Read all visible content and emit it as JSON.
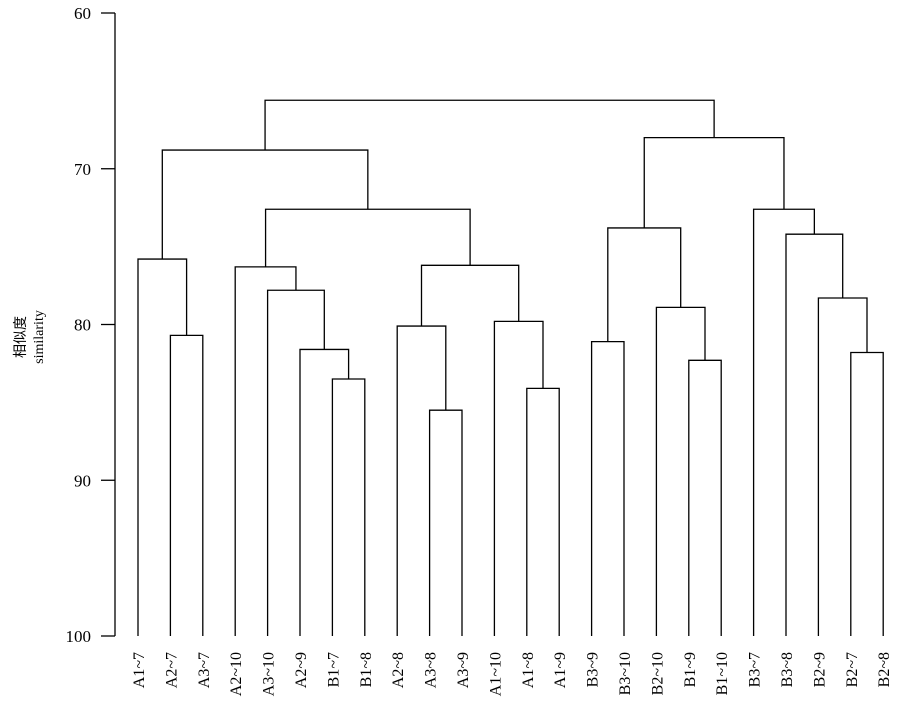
{
  "chart_data": {
    "type": "dendrogram",
    "ylabel": "相似度",
    "ylabel_en": "similarity",
    "ylim": [
      60,
      100
    ],
    "y_ticks": [
      60,
      70,
      80,
      90,
      100
    ],
    "leaves": [
      "A1~7",
      "A2~7",
      "A3~7",
      "A2~10",
      "A3~10",
      "A2~9",
      "B1~7",
      "B1~8",
      "A2~8",
      "A3~8",
      "A3~9",
      "A1~10",
      "A1~8",
      "A1~9",
      "B3~9",
      "B3~10",
      "B2~10",
      "B1~9",
      "B1~10",
      "B3~7",
      "B3~8",
      "B2~9",
      "B2~7",
      "B2~8"
    ],
    "merges": [
      {
        "id": "m1",
        "left": "A2~7",
        "right": "A3~7",
        "similarity": 80.7
      },
      {
        "id": "m2",
        "left": "A1~7",
        "right": "m1",
        "similarity": 75.8
      },
      {
        "id": "m3",
        "left": "B1~7",
        "right": "B1~8",
        "similarity": 83.5
      },
      {
        "id": "m4",
        "left": "A2~9",
        "right": "m3",
        "similarity": 81.6
      },
      {
        "id": "m5",
        "left": "A3~10",
        "right": "m4",
        "similarity": 77.8
      },
      {
        "id": "m6",
        "left": "A2~10",
        "right": "m5",
        "similarity": 76.3
      },
      {
        "id": "m7",
        "left": "A3~8",
        "right": "A3~9",
        "similarity": 85.5
      },
      {
        "id": "m8",
        "left": "A2~8",
        "right": "m7",
        "similarity": 80.1
      },
      {
        "id": "m9",
        "left": "A1~8",
        "right": "A1~9",
        "similarity": 84.1
      },
      {
        "id": "m10",
        "left": "A1~10",
        "right": "m9",
        "similarity": 79.8
      },
      {
        "id": "m11",
        "left": "m8",
        "right": "m10",
        "similarity": 76.2
      },
      {
        "id": "m12",
        "left": "m6",
        "right": "m11",
        "similarity": 72.6
      },
      {
        "id": "m13",
        "left": "m2",
        "right": "m12",
        "similarity": 68.8
      },
      {
        "id": "m14",
        "left": "B3~9",
        "right": "B3~10",
        "similarity": 81.1
      },
      {
        "id": "m15",
        "left": "B1~9",
        "right": "B1~10",
        "similarity": 82.3
      },
      {
        "id": "m16",
        "left": "B2~10",
        "right": "m15",
        "similarity": 78.9
      },
      {
        "id": "m17",
        "left": "m14",
        "right": "m16",
        "similarity": 73.8
      },
      {
        "id": "m18",
        "left": "B2~7",
        "right": "B2~8",
        "similarity": 81.8
      },
      {
        "id": "m19",
        "left": "B2~9",
        "right": "m18",
        "similarity": 78.3
      },
      {
        "id": "m20",
        "left": "B3~8",
        "right": "m19",
        "similarity": 74.2
      },
      {
        "id": "m21",
        "left": "B3~7",
        "right": "m20",
        "similarity": 72.6
      },
      {
        "id": "m22",
        "left": "m17",
        "right": "m21",
        "similarity": 68.0
      },
      {
        "id": "m23",
        "left": "m13",
        "right": "m22",
        "similarity": 65.6
      }
    ],
    "grid": false,
    "legend": "none"
  }
}
